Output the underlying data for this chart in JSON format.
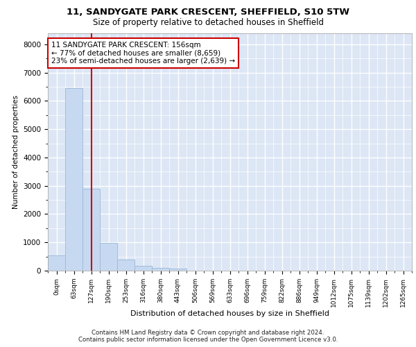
{
  "title_line1": "11, SANDYGATE PARK CRESCENT, SHEFFIELD, S10 5TW",
  "title_line2": "Size of property relative to detached houses in Sheffield",
  "xlabel": "Distribution of detached houses by size in Sheffield",
  "ylabel": "Number of detached properties",
  "bar_labels": [
    "0sqm",
    "63sqm",
    "127sqm",
    "190sqm",
    "253sqm",
    "316sqm",
    "380sqm",
    "443sqm",
    "506sqm",
    "569sqm",
    "633sqm",
    "696sqm",
    "759sqm",
    "822sqm",
    "886sqm",
    "949sqm",
    "1012sqm",
    "1075sqm",
    "1139sqm",
    "1202sqm",
    "1265sqm"
  ],
  "bar_heights": [
    550,
    6450,
    2900,
    970,
    400,
    180,
    100,
    70,
    0,
    0,
    0,
    0,
    0,
    0,
    0,
    0,
    0,
    0,
    0,
    0,
    0
  ],
  "bar_color": "#c6d9f0",
  "bar_edge_color": "#9ab8d8",
  "background_color": "#dce6f5",
  "grid_color": "#ffffff",
  "vline_color": "#cc0000",
  "vline_x": 2.0,
  "ylim": [
    0,
    8400
  ],
  "yticks": [
    0,
    1000,
    2000,
    3000,
    4000,
    5000,
    6000,
    7000,
    8000
  ],
  "annotation_line1": "11 SANDYGATE PARK CRESCENT: 156sqm",
  "annotation_line2": "← 77% of detached houses are smaller (8,659)",
  "annotation_line3": "23% of semi-detached houses are larger (2,639) →",
  "annotation_box_color": "#cc0000",
  "footer_line1": "Contains HM Land Registry data © Crown copyright and database right 2024.",
  "footer_line2": "Contains public sector information licensed under the Open Government Licence v3.0."
}
